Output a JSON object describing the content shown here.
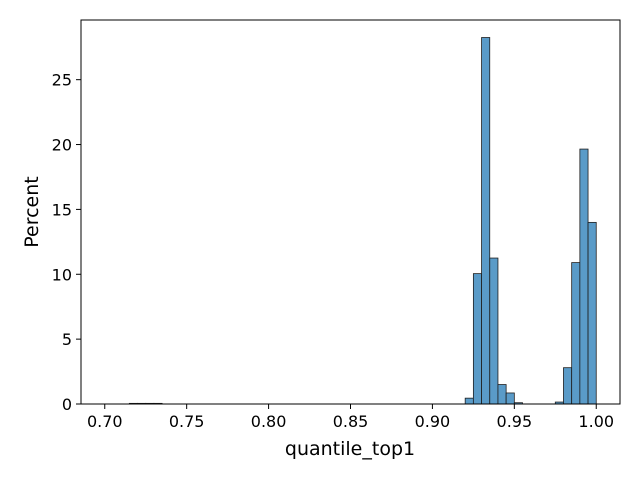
{
  "chart_data": {
    "type": "bar",
    "subtype": "histogram",
    "title": "",
    "xlabel": "quantile_top1",
    "ylabel": "Percent",
    "xlim": [
      0.6855,
      1.0145
    ],
    "ylim": [
      0,
      29.6
    ],
    "x_ticks": [
      "0.70",
      "0.75",
      "0.80",
      "0.85",
      "0.90",
      "0.95",
      "1.00"
    ],
    "x_tick_values": [
      0.7,
      0.75,
      0.8,
      0.85,
      0.9,
      0.95,
      1.0
    ],
    "y_ticks": [
      "0",
      "5",
      "10",
      "15",
      "20",
      "25"
    ],
    "y_tick_values": [
      0,
      5,
      10,
      15,
      20,
      25
    ],
    "bin_width": 0.005,
    "bins": [
      {
        "x0": 0.715,
        "x1": 0.72,
        "value": 0.05
      },
      {
        "x0": 0.72,
        "x1": 0.725,
        "value": 0.05
      },
      {
        "x0": 0.725,
        "x1": 0.73,
        "value": 0.05
      },
      {
        "x0": 0.73,
        "x1": 0.735,
        "value": 0.05
      },
      {
        "x0": 0.92,
        "x1": 0.925,
        "value": 0.45
      },
      {
        "x0": 0.925,
        "x1": 0.93,
        "value": 10.05
      },
      {
        "x0": 0.93,
        "x1": 0.935,
        "value": 28.25
      },
      {
        "x0": 0.935,
        "x1": 0.94,
        "value": 11.25
      },
      {
        "x0": 0.94,
        "x1": 0.945,
        "value": 1.5
      },
      {
        "x0": 0.945,
        "x1": 0.95,
        "value": 0.85
      },
      {
        "x0": 0.95,
        "x1": 0.955,
        "value": 0.1
      },
      {
        "x0": 0.975,
        "x1": 0.98,
        "value": 0.15
      },
      {
        "x0": 0.98,
        "x1": 0.985,
        "value": 2.8
      },
      {
        "x0": 0.985,
        "x1": 0.99,
        "value": 10.9
      },
      {
        "x0": 0.99,
        "x1": 0.995,
        "value": 19.65
      },
      {
        "x0": 0.995,
        "x1": 1.0,
        "value": 14.0
      }
    ],
    "bar_color": "#5a9bc8",
    "edge_color": "#1f1f1f",
    "grid": false,
    "legend": "none"
  }
}
